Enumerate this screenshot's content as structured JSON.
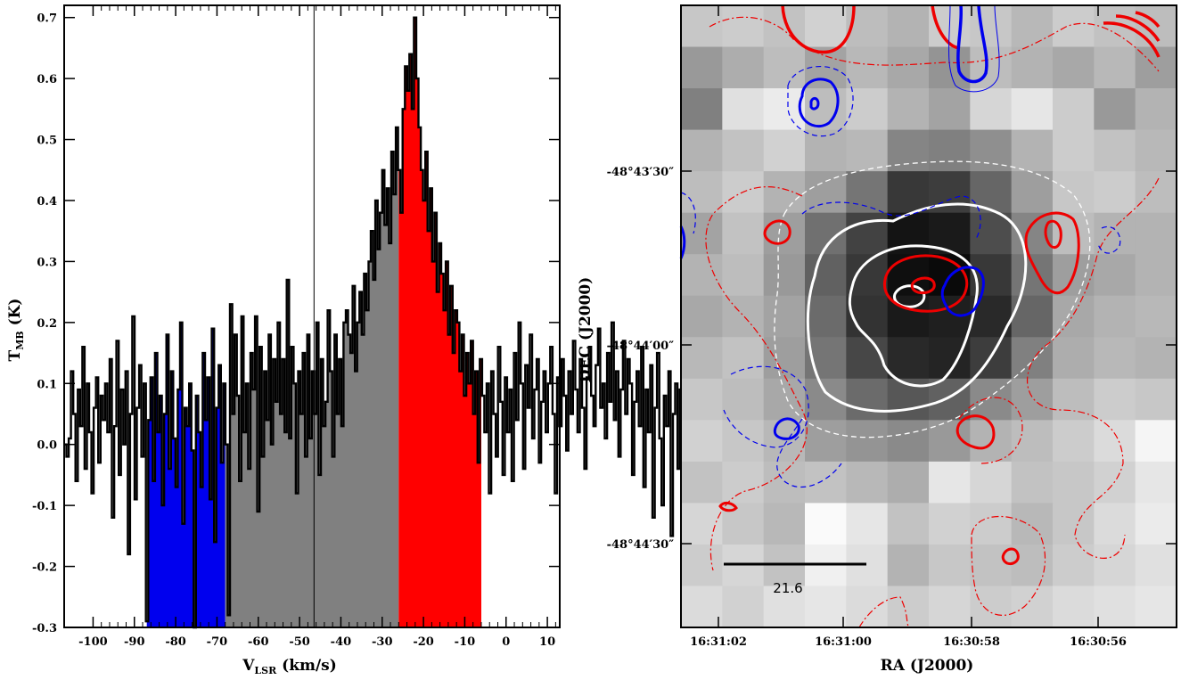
{
  "chart_data": [
    {
      "type": "line",
      "subtype": "step-histogram spectrum",
      "xlabel_main": "V",
      "xlabel_sub": "LSR",
      "xlabel_unit": " (km/s)",
      "ylabel_main": "T",
      "ylabel_sub": "MB",
      "ylabel_unit": " (K)",
      "xlim": [
        -107,
        13
      ],
      "ylim": [
        -0.3,
        0.72
      ],
      "xticks": [
        "-100",
        "-90",
        "-80",
        "-70",
        "-60",
        "-50",
        "-40",
        "-30",
        "-20",
        "-10",
        "0",
        "10"
      ],
      "xtick_values": [
        -100,
        -90,
        -80,
        -70,
        -60,
        -50,
        -40,
        -30,
        -20,
        -10,
        0,
        10
      ],
      "yticks": [
        "-0.3",
        "-0.2",
        "-0.1",
        "0.0",
        "0.1",
        "0.2",
        "0.3",
        "0.4",
        "0.5",
        "0.6",
        "0.7"
      ],
      "ytick_values": [
        -0.3,
        -0.2,
        -0.1,
        0.0,
        0.1,
        0.2,
        0.3,
        0.4,
        0.5,
        0.6,
        0.7
      ],
      "peak_velocity_line": -46.5,
      "fill_ranges": [
        {
          "name": "blue-wing",
          "from": -87,
          "to": -68,
          "color": "#0000ee"
        },
        {
          "name": "line-core",
          "from": -68,
          "to": -26,
          "color": "#808080"
        },
        {
          "name": "red-wing",
          "from": -26,
          "to": -6,
          "color": "#ff0000"
        }
      ],
      "channel_width": 0.55,
      "x_start": -107,
      "values": [
        0.0,
        -0.02,
        0.01,
        0.12,
        0.05,
        -0.06,
        0.09,
        0.03,
        0.16,
        -0.04,
        0.1,
        0.02,
        -0.08,
        0.06,
        0.11,
        -0.03,
        0.08,
        0.04,
        0.1,
        0.02,
        0.14,
        -0.12,
        0.03,
        0.17,
        -0.05,
        0.09,
        0.0,
        0.12,
        -0.18,
        0.05,
        0.21,
        -0.09,
        0.06,
        0.13,
        -0.02,
        0.1,
        -0.29,
        0.04,
        0.11,
        -0.06,
        0.15,
        0.02,
        0.08,
        -0.1,
        0.05,
        0.18,
        -0.04,
        0.12,
        0.01,
        -0.07,
        0.09,
        0.2,
        -0.13,
        0.06,
        0.03,
        0.1,
        -0.01,
        -0.3,
        0.08,
        0.02,
        -0.07,
        0.15,
        0.04,
        0.11,
        -0.09,
        0.19,
        -0.16,
        0.06,
        0.13,
        -0.03,
        0.1,
        0.0,
        -0.28,
        0.23,
        0.05,
        0.18,
        0.08,
        -0.06,
        0.21,
        0.02,
        0.1,
        -0.04,
        0.15,
        0.09,
        0.21,
        -0.11,
        0.16,
        -0.02,
        0.12,
        0.04,
        0.18,
        0.0,
        0.14,
        0.07,
        0.2,
        0.05,
        0.14,
        0.02,
        0.27,
        0.01,
        0.16,
        0.1,
        -0.08,
        0.12,
        0.05,
        0.15,
        -0.02,
        0.18,
        0.01,
        0.12,
        0.05,
        0.2,
        -0.05,
        0.14,
        0.03,
        0.07,
        0.22,
        0.12,
        -0.02,
        0.18,
        0.05,
        0.14,
        0.03,
        0.2,
        0.22,
        0.18,
        0.15,
        0.26,
        0.12,
        0.2,
        0.25,
        0.18,
        0.28,
        0.22,
        0.3,
        0.35,
        0.27,
        0.4,
        0.32,
        0.38,
        0.45,
        0.36,
        0.42,
        0.33,
        0.48,
        0.41,
        0.52,
        0.45,
        0.38,
        0.55,
        0.62,
        0.58,
        0.64,
        0.55,
        0.7,
        0.6,
        0.52,
        0.45,
        0.4,
        0.48,
        0.35,
        0.42,
        0.3,
        0.38,
        0.25,
        0.33,
        0.28,
        0.22,
        0.3,
        0.18,
        0.26,
        0.15,
        0.22,
        0.2,
        0.12,
        0.18,
        0.08,
        0.15,
        0.1,
        0.17,
        0.05,
        0.12,
        -0.03,
        0.14,
        0.08,
        0.02,
        0.1,
        -0.08,
        0.12,
        0.05,
        -0.02,
        0.16,
        0.07,
        -0.05,
        0.11,
        0.02,
        0.09,
        -0.06,
        0.15,
        0.04,
        0.2,
        0.1,
        -0.04,
        0.13,
        0.06,
        0.18,
        0.01,
        0.09,
        0.14,
        -0.03,
        0.07,
        0.12,
        0.02,
        0.1,
        0.16,
        0.05,
        -0.08,
        0.11,
        0.03,
        0.14,
        0.08,
        -0.01,
        0.12,
        0.05,
        0.17,
        0.09,
        0.02,
        0.14,
        0.06,
        -0.04,
        0.11,
        0.16,
        0.08,
        0.03,
        0.13,
        0.19,
        0.06,
        0.1,
        0.01,
        0.15,
        0.07,
        0.2,
        0.04,
        0.12,
        -0.02,
        0.09,
        0.17,
        0.05,
        0.14,
        0.1,
        -0.05,
        0.07,
        0.12,
        0.03,
        0.16,
        -0.07,
        0.09,
        0.02,
        0.13,
        -0.12,
        0.06,
        0.15,
        0.01,
        -0.1,
        0.08,
        0.03,
        0.12,
        -0.15,
        0.05,
        0.1,
        -0.04,
        0.09,
        -0.2,
        0.14,
        0.02,
        0.07,
        -0.08,
        0.12,
        0.18,
        0.03,
        -0.06,
        0.1,
        0.21,
        0.05,
        0.09,
        -0.02,
        0.15,
        0.07,
        0.18,
        0.01,
        0.11,
        -0.22,
        0.08,
        0.04,
        0.14,
        -0.05,
        0.02,
        0.1,
        -0.12,
        0.06,
        0.15,
        0.01,
        -0.08,
        0.1,
        0.03
      ]
    },
    {
      "type": "heatmap",
      "subtype": "grayscale map with contours",
      "xlabel": "RA (J2000)",
      "ylabel": "DEC (J2000)",
      "xticks": [
        "16:31:02",
        "16:31:00",
        "16:30:58",
        "16:30:56"
      ],
      "yticks": [
        "-48°43′30″",
        "-48°44′00″",
        "-48°44′30″"
      ],
      "scale_bar_label": "21.6",
      "grid_cols": 12,
      "grid_rows": 15,
      "intensity": [
        [
          0.78,
          0.8,
          0.76,
          0.82,
          0.74,
          0.7,
          0.8,
          0.78,
          0.72,
          0.8,
          0.76,
          0.74
        ],
        [
          0.6,
          0.68,
          0.74,
          0.64,
          0.72,
          0.66,
          0.58,
          0.74,
          0.7,
          0.66,
          0.72,
          0.62
        ],
        [
          0.5,
          0.88,
          0.92,
          0.74,
          0.8,
          0.7,
          0.64,
          0.84,
          0.9,
          0.8,
          0.6,
          0.7
        ],
        [
          0.7,
          0.76,
          0.82,
          0.7,
          0.72,
          0.52,
          0.5,
          0.56,
          0.7,
          0.8,
          0.76,
          0.72
        ],
        [
          0.74,
          0.8,
          0.7,
          0.62,
          0.46,
          0.22,
          0.24,
          0.4,
          0.62,
          0.78,
          0.8,
          0.74
        ],
        [
          0.64,
          0.76,
          0.62,
          0.44,
          0.26,
          0.08,
          0.1,
          0.3,
          0.52,
          0.74,
          0.7,
          0.7
        ],
        [
          0.7,
          0.74,
          0.6,
          0.38,
          0.22,
          0.06,
          0.04,
          0.22,
          0.46,
          0.62,
          0.66,
          0.7
        ],
        [
          0.66,
          0.7,
          0.64,
          0.42,
          0.2,
          0.1,
          0.12,
          0.16,
          0.4,
          0.66,
          0.7,
          0.72
        ],
        [
          0.72,
          0.76,
          0.62,
          0.46,
          0.28,
          0.16,
          0.14,
          0.24,
          0.5,
          0.68,
          0.72,
          0.7
        ],
        [
          0.78,
          0.74,
          0.66,
          0.54,
          0.42,
          0.34,
          0.38,
          0.54,
          0.62,
          0.74,
          0.8,
          0.78
        ],
        [
          0.82,
          0.78,
          0.72,
          0.62,
          0.58,
          0.54,
          0.6,
          0.7,
          0.74,
          0.8,
          0.86,
          0.96
        ],
        [
          0.76,
          0.8,
          0.74,
          0.76,
          0.72,
          0.68,
          0.9,
          0.84,
          0.76,
          0.78,
          0.82,
          0.9
        ],
        [
          0.84,
          0.78,
          0.72,
          0.98,
          0.9,
          0.76,
          0.82,
          0.8,
          0.72,
          0.78,
          0.86,
          0.92
        ],
        [
          0.8,
          0.84,
          0.76,
          0.94,
          0.88,
          0.7,
          0.78,
          0.76,
          0.74,
          0.8,
          0.84,
          0.88
        ],
        [
          0.86,
          0.82,
          0.88,
          0.9,
          0.86,
          0.8,
          0.84,
          0.8,
          0.82,
          0.86,
          0.88,
          0.9
        ]
      ]
    }
  ]
}
